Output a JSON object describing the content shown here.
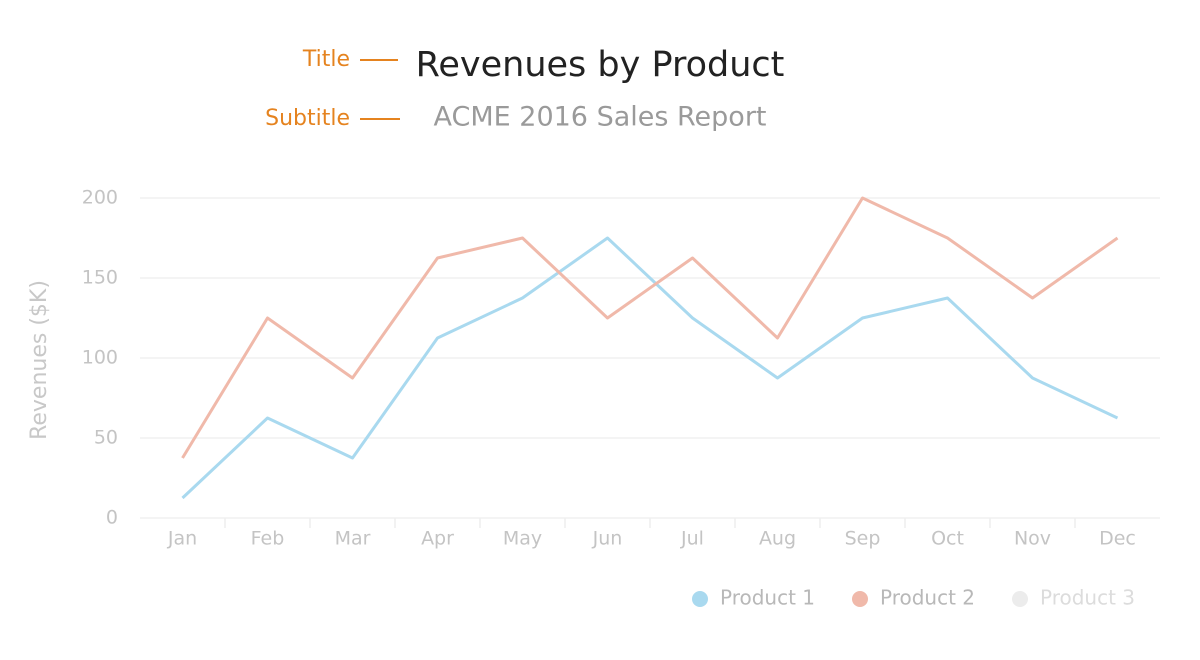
{
  "chart_data": {
    "type": "line",
    "title": "Revenues by Product",
    "subtitle": "ACME 2016 Sales Report",
    "annotations": [
      "Title",
      "Subtitle"
    ],
    "y_label": "Revenues ($K)",
    "categories": [
      "Jan",
      "Feb",
      "Mar",
      "Apr",
      "May",
      "Jun",
      "Jul",
      "Aug",
      "Sep",
      "Oct",
      "Nov",
      "Dec"
    ],
    "series": [
      {
        "name": "Product 1",
        "color": "#a9d9ef",
        "values": [
          12.5,
          62.5,
          37.5,
          112.5,
          137.5,
          175,
          125,
          87.5,
          125,
          137.5,
          87.5,
          62.5
        ]
      },
      {
        "name": "Product 2",
        "color": "#f0b9aa",
        "values": [
          37.5,
          125,
          87.5,
          162.5,
          175,
          125,
          162.5,
          112.5,
          200,
          175,
          137.5,
          175
        ]
      },
      {
        "name": "Product 3",
        "color": "#ececec",
        "visible": false
      }
    ],
    "ylim": [
      0,
      200
    ],
    "yticks": [
      0,
      50,
      100,
      150,
      200
    ],
    "grid": true,
    "legend": "bottom-right"
  }
}
